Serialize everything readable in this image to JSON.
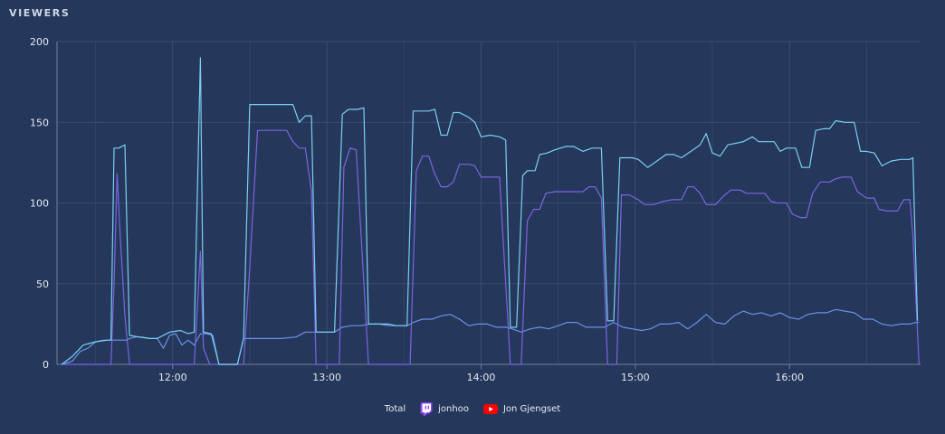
{
  "panel": {
    "title": "VIEWERS"
  },
  "legend": {
    "items": [
      {
        "label": "Total",
        "icon": ""
      },
      {
        "label": "jonhoo",
        "icon": "twitch-icon"
      },
      {
        "label": "Jon Gjengset",
        "icon": "youtube-icon"
      }
    ]
  },
  "colors": {
    "background": "#25375a",
    "grid": "#3b4f72",
    "axis": "#73829c",
    "total": "#79d0f2",
    "twitch": "#7966e0",
    "youtube": "#6b92e8",
    "twitch_brand": "#9146ff",
    "youtube_brand": "#ff0000"
  },
  "chart_data": {
    "type": "line",
    "title": "VIEWERS",
    "xlabel": "",
    "ylabel": "",
    "x_unit": "time (hours)",
    "xlim": [
      11.25,
      16.85
    ],
    "ylim": [
      0,
      200
    ],
    "y_ticks": [
      0,
      50,
      100,
      150,
      200
    ],
    "x_ticks": [
      {
        "value": 12,
        "label": "12:00"
      },
      {
        "value": 13,
        "label": "13:00"
      },
      {
        "value": 14,
        "label": "14:00"
      },
      {
        "value": 15,
        "label": "15:00"
      },
      {
        "value": 16,
        "label": "16:00"
      }
    ],
    "grid": true,
    "legend_position": "bottom",
    "series": [
      {
        "name": "Total",
        "color_key": "total",
        "points": [
          [
            11.28,
            0
          ],
          [
            11.35,
            5
          ],
          [
            11.42,
            12
          ],
          [
            11.5,
            14
          ],
          [
            11.58,
            15
          ],
          [
            11.6,
            15
          ],
          [
            11.62,
            134
          ],
          [
            11.65,
            134
          ],
          [
            11.69,
            136
          ],
          [
            11.72,
            18
          ],
          [
            11.78,
            17
          ],
          [
            11.85,
            16
          ],
          [
            11.9,
            16
          ],
          [
            11.98,
            20
          ],
          [
            12.05,
            21
          ],
          [
            12.1,
            19
          ],
          [
            12.14,
            20
          ],
          [
            12.18,
            190
          ],
          [
            12.2,
            20
          ],
          [
            12.25,
            19
          ],
          [
            12.3,
            0
          ],
          [
            12.36,
            0
          ],
          [
            12.42,
            0
          ],
          [
            12.46,
            16
          ],
          [
            12.5,
            161
          ],
          [
            12.6,
            161
          ],
          [
            12.7,
            161
          ],
          [
            12.78,
            161
          ],
          [
            12.82,
            150
          ],
          [
            12.86,
            154
          ],
          [
            12.9,
            154
          ],
          [
            12.93,
            20
          ],
          [
            13.05,
            20
          ],
          [
            13.1,
            155
          ],
          [
            13.14,
            158
          ],
          [
            13.2,
            158
          ],
          [
            13.24,
            159
          ],
          [
            13.27,
            25
          ],
          [
            13.35,
            25
          ],
          [
            13.4,
            25
          ],
          [
            13.45,
            24
          ],
          [
            13.52,
            24
          ],
          [
            13.56,
            157
          ],
          [
            13.62,
            157
          ],
          [
            13.66,
            157
          ],
          [
            13.7,
            158
          ],
          [
            13.74,
            142
          ],
          [
            13.78,
            142
          ],
          [
            13.82,
            156
          ],
          [
            13.86,
            156
          ],
          [
            13.92,
            153
          ],
          [
            13.96,
            150
          ],
          [
            14.0,
            141
          ],
          [
            14.06,
            142
          ],
          [
            14.12,
            141
          ],
          [
            14.16,
            139
          ],
          [
            14.19,
            23
          ],
          [
            14.23,
            23
          ],
          [
            14.27,
            117
          ],
          [
            14.3,
            120
          ],
          [
            14.35,
            120
          ],
          [
            14.38,
            130
          ],
          [
            14.43,
            131
          ],
          [
            14.48,
            133
          ],
          [
            14.55,
            135
          ],
          [
            14.6,
            135
          ],
          [
            14.66,
            132
          ],
          [
            14.72,
            134
          ],
          [
            14.78,
            134
          ],
          [
            14.82,
            27
          ],
          [
            14.86,
            27
          ],
          [
            14.9,
            128
          ],
          [
            14.98,
            128
          ],
          [
            15.02,
            127
          ],
          [
            15.08,
            122
          ],
          [
            15.14,
            126
          ],
          [
            15.2,
            130
          ],
          [
            15.25,
            130
          ],
          [
            15.3,
            128
          ],
          [
            15.36,
            132
          ],
          [
            15.42,
            136
          ],
          [
            15.46,
            143
          ],
          [
            15.5,
            131
          ],
          [
            15.55,
            129
          ],
          [
            15.6,
            136
          ],
          [
            15.65,
            137
          ],
          [
            15.7,
            138
          ],
          [
            15.76,
            141
          ],
          [
            15.8,
            138
          ],
          [
            15.86,
            138
          ],
          [
            15.9,
            138
          ],
          [
            15.94,
            132
          ],
          [
            15.98,
            134
          ],
          [
            16.04,
            134
          ],
          [
            16.08,
            122
          ],
          [
            16.13,
            122
          ],
          [
            16.17,
            145
          ],
          [
            16.22,
            146
          ],
          [
            16.26,
            146
          ],
          [
            16.3,
            151
          ],
          [
            16.36,
            150
          ],
          [
            16.42,
            150
          ],
          [
            16.46,
            132
          ],
          [
            16.5,
            132
          ],
          [
            16.55,
            131
          ],
          [
            16.6,
            123
          ],
          [
            16.66,
            126
          ],
          [
            16.72,
            127
          ],
          [
            16.78,
            127
          ],
          [
            16.8,
            128
          ],
          [
            16.83,
            27
          ]
        ]
      },
      {
        "name": "jonhoo",
        "color_key": "twitch",
        "points": [
          [
            11.28,
            0
          ],
          [
            11.6,
            0
          ],
          [
            11.62,
            50
          ],
          [
            11.64,
            118
          ],
          [
            11.66,
            80
          ],
          [
            11.69,
            30
          ],
          [
            11.72,
            0
          ],
          [
            12.14,
            0
          ],
          [
            12.18,
            70
          ],
          [
            12.2,
            10
          ],
          [
            12.24,
            0
          ],
          [
            12.46,
            0
          ],
          [
            12.5,
            60
          ],
          [
            12.55,
            145
          ],
          [
            12.65,
            145
          ],
          [
            12.74,
            145
          ],
          [
            12.78,
            138
          ],
          [
            12.82,
            134
          ],
          [
            12.86,
            134
          ],
          [
            12.9,
            107
          ],
          [
            12.93,
            0
          ],
          [
            13.08,
            0
          ],
          [
            13.11,
            122
          ],
          [
            13.15,
            134
          ],
          [
            13.19,
            133
          ],
          [
            13.24,
            50
          ],
          [
            13.27,
            0
          ],
          [
            13.54,
            0
          ],
          [
            13.58,
            120
          ],
          [
            13.62,
            129
          ],
          [
            13.66,
            129
          ],
          [
            13.7,
            118
          ],
          [
            13.74,
            110
          ],
          [
            13.78,
            110
          ],
          [
            13.82,
            113
          ],
          [
            13.86,
            124
          ],
          [
            13.92,
            124
          ],
          [
            13.96,
            123
          ],
          [
            14.0,
            116
          ],
          [
            14.08,
            116
          ],
          [
            14.12,
            116
          ],
          [
            14.16,
            50
          ],
          [
            14.19,
            0
          ],
          [
            14.26,
            0
          ],
          [
            14.3,
            89
          ],
          [
            14.34,
            96
          ],
          [
            14.38,
            96
          ],
          [
            14.42,
            106
          ],
          [
            14.48,
            107
          ],
          [
            14.55,
            107
          ],
          [
            14.62,
            107
          ],
          [
            14.66,
            107
          ],
          [
            14.7,
            110
          ],
          [
            14.74,
            110
          ],
          [
            14.78,
            103
          ],
          [
            14.82,
            0
          ],
          [
            14.88,
            0
          ],
          [
            14.91,
            105
          ],
          [
            14.96,
            105
          ],
          [
            15.02,
            102
          ],
          [
            15.06,
            99
          ],
          [
            15.12,
            99
          ],
          [
            15.18,
            101
          ],
          [
            15.24,
            102
          ],
          [
            15.3,
            102
          ],
          [
            15.34,
            110
          ],
          [
            15.38,
            110
          ],
          [
            15.42,
            106
          ],
          [
            15.46,
            99
          ],
          [
            15.52,
            99
          ],
          [
            15.58,
            105
          ],
          [
            15.62,
            108
          ],
          [
            15.68,
            108
          ],
          [
            15.72,
            106
          ],
          [
            15.78,
            106
          ],
          [
            15.84,
            106
          ],
          [
            15.88,
            101
          ],
          [
            15.92,
            100
          ],
          [
            15.98,
            100
          ],
          [
            16.02,
            93
          ],
          [
            16.07,
            91
          ],
          [
            16.11,
            91
          ],
          [
            16.15,
            106
          ],
          [
            16.2,
            113
          ],
          [
            16.26,
            113
          ],
          [
            16.3,
            115
          ],
          [
            16.34,
            116
          ],
          [
            16.4,
            116
          ],
          [
            16.44,
            107
          ],
          [
            16.5,
            103
          ],
          [
            16.55,
            103
          ],
          [
            16.58,
            96
          ],
          [
            16.64,
            95
          ],
          [
            16.7,
            95
          ],
          [
            16.74,
            102
          ],
          [
            16.78,
            102
          ],
          [
            16.8,
            80
          ],
          [
            16.82,
            40
          ],
          [
            16.84,
            0
          ]
        ]
      },
      {
        "name": "Jon Gjengset",
        "color_key": "youtube",
        "points": [
          [
            11.28,
            0
          ],
          [
            11.35,
            2
          ],
          [
            11.4,
            8
          ],
          [
            11.45,
            10
          ],
          [
            11.5,
            14
          ],
          [
            11.55,
            15
          ],
          [
            11.6,
            15
          ],
          [
            11.65,
            15
          ],
          [
            11.7,
            15
          ],
          [
            11.72,
            16
          ],
          [
            11.76,
            17
          ],
          [
            11.8,
            17
          ],
          [
            11.85,
            16
          ],
          [
            11.9,
            16
          ],
          [
            11.94,
            10
          ],
          [
            11.98,
            18
          ],
          [
            12.02,
            19
          ],
          [
            12.06,
            12
          ],
          [
            12.1,
            15
          ],
          [
            12.14,
            12
          ],
          [
            12.18,
            19
          ],
          [
            12.22,
            19
          ],
          [
            12.26,
            18
          ],
          [
            12.3,
            0
          ],
          [
            12.42,
            0
          ],
          [
            12.46,
            16
          ],
          [
            12.5,
            16
          ],
          [
            12.6,
            16
          ],
          [
            12.7,
            16
          ],
          [
            12.8,
            17
          ],
          [
            12.86,
            20
          ],
          [
            12.9,
            20
          ],
          [
            12.96,
            20
          ],
          [
            13.0,
            20
          ],
          [
            13.05,
            20
          ],
          [
            13.1,
            23
          ],
          [
            13.16,
            24
          ],
          [
            13.22,
            24
          ],
          [
            13.28,
            25
          ],
          [
            13.34,
            25
          ],
          [
            13.4,
            24
          ],
          [
            13.46,
            24
          ],
          [
            13.52,
            24
          ],
          [
            13.56,
            26
          ],
          [
            13.62,
            28
          ],
          [
            13.68,
            28
          ],
          [
            13.74,
            30
          ],
          [
            13.8,
            31
          ],
          [
            13.86,
            28
          ],
          [
            13.92,
            24
          ],
          [
            13.98,
            25
          ],
          [
            14.04,
            25
          ],
          [
            14.1,
            23
          ],
          [
            14.16,
            23
          ],
          [
            14.2,
            22
          ],
          [
            14.26,
            20
          ],
          [
            14.32,
            22
          ],
          [
            14.38,
            23
          ],
          [
            14.44,
            22
          ],
          [
            14.5,
            24
          ],
          [
            14.56,
            26
          ],
          [
            14.62,
            26
          ],
          [
            14.68,
            23
          ],
          [
            14.74,
            23
          ],
          [
            14.8,
            23
          ],
          [
            14.86,
            26
          ],
          [
            14.92,
            23
          ],
          [
            14.98,
            22
          ],
          [
            15.04,
            21
          ],
          [
            15.1,
            22
          ],
          [
            15.16,
            25
          ],
          [
            15.22,
            25
          ],
          [
            15.28,
            26
          ],
          [
            15.34,
            22
          ],
          [
            15.4,
            26
          ],
          [
            15.46,
            31
          ],
          [
            15.52,
            26
          ],
          [
            15.58,
            25
          ],
          [
            15.64,
            30
          ],
          [
            15.7,
            33
          ],
          [
            15.76,
            31
          ],
          [
            15.82,
            32
          ],
          [
            15.88,
            30
          ],
          [
            15.94,
            32
          ],
          [
            16.0,
            29
          ],
          [
            16.06,
            28
          ],
          [
            16.12,
            31
          ],
          [
            16.18,
            32
          ],
          [
            16.24,
            32
          ],
          [
            16.3,
            34
          ],
          [
            16.36,
            33
          ],
          [
            16.42,
            32
          ],
          [
            16.48,
            28
          ],
          [
            16.54,
            28
          ],
          [
            16.6,
            25
          ],
          [
            16.66,
            24
          ],
          [
            16.72,
            25
          ],
          [
            16.78,
            25
          ],
          [
            16.82,
            26
          ],
          [
            16.84,
            26
          ]
        ]
      }
    ]
  }
}
